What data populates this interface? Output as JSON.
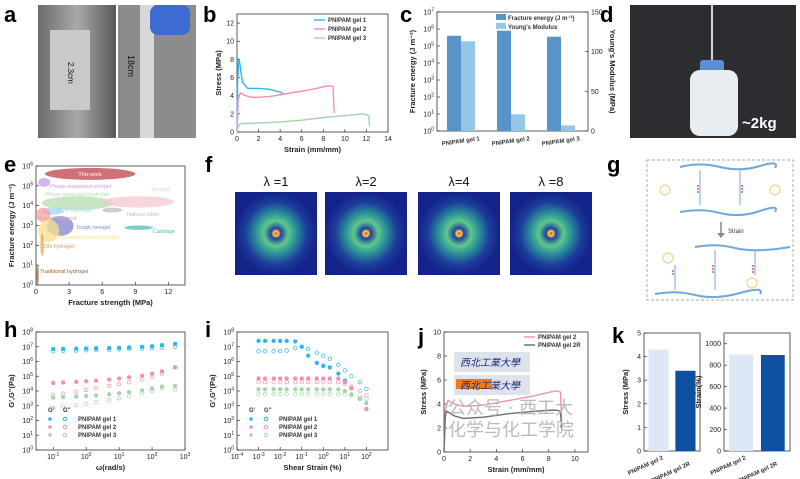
{
  "panel_labels": [
    "a",
    "b",
    "c",
    "d",
    "e",
    "f",
    "g",
    "h",
    "i",
    "j",
    "k"
  ],
  "photo_a": {
    "labels": [
      "2.3cm",
      "18cm"
    ]
  },
  "photo_d": {
    "label": "~2kg"
  },
  "panel_f": {
    "labels": [
      "λ =1",
      "λ=2",
      "λ=4",
      "λ =8"
    ]
  },
  "panel_g": {
    "arrow_label": "Strain"
  },
  "watermark": "公众号 · 西工大化学与化工学院",
  "colors": {
    "gel1": "#29b6f6",
    "gel2": "#f48fb1",
    "gel3": "#a5d6a7",
    "gel2R": "#6d6d6d",
    "fracture_energy": "#5a93c8",
    "youngs_modulus": "#94c6e7",
    "k_light": "#dce8f5",
    "k_dark": "#0d4fa0"
  },
  "chart_data": [
    {
      "id": "b",
      "type": "line",
      "xlabel": "Strain (mm/mm)",
      "ylabel": "Stress (MPa)",
      "xlim": [
        0,
        14
      ],
      "ylim": [
        0,
        13
      ],
      "xticks": [
        0,
        2,
        4,
        6,
        8,
        10,
        12,
        14
      ],
      "yticks": [
        0,
        2,
        4,
        6,
        8,
        10,
        12
      ],
      "legend": "top-right",
      "series": [
        {
          "name": "PNIPAM gel 1",
          "x": [
            0,
            0.05,
            0.15,
            0.25,
            0.5,
            1,
            2,
            3,
            4,
            4.3
          ],
          "y": [
            0,
            5,
            8.1,
            7.6,
            5.5,
            4.8,
            4.8,
            4.7,
            4.4,
            4.2
          ]
        },
        {
          "name": "PNIPAM gel 2",
          "x": [
            0,
            0.1,
            0.3,
            0.8,
            1.5,
            3,
            5,
            7,
            8.5,
            8.9,
            9.0
          ],
          "y": [
            0,
            3.5,
            4.3,
            4.0,
            3.8,
            3.9,
            4.3,
            4.7,
            5.1,
            5.0,
            2.1
          ]
        },
        {
          "name": "PNIPAM gel 3",
          "x": [
            0,
            0.1,
            0.3,
            2,
            4,
            6,
            8,
            10,
            11.7,
            12.2,
            12.3
          ],
          "y": [
            0,
            0.6,
            0.9,
            1.0,
            1.1,
            1.3,
            1.6,
            1.8,
            2.0,
            1.8,
            0.6
          ]
        }
      ]
    },
    {
      "id": "c",
      "type": "bar",
      "categories": [
        "PNIPAM gel 1",
        "PNIPAM gel 2",
        "PNIPAM gel 3"
      ],
      "ylabel": "Fracture energy (J m⁻²)",
      "ylabel_right": "Young's Modulus (MPa)",
      "yscale": "log",
      "ylim": [
        1,
        10000000
      ],
      "yticks": [
        1,
        10,
        100,
        1000,
        10000,
        100000,
        1000000,
        10000000
      ],
      "ylim_right": [
        0,
        150
      ],
      "yticks_right": [
        0,
        50,
        100,
        150
      ],
      "legend": "top-right",
      "series": [
        {
          "name": "Fracture energy (J m⁻²)",
          "axis": "left",
          "values": [
            400000,
            800000,
            350000
          ]
        },
        {
          "name": "Young's Modulus",
          "axis": "right",
          "values": [
            113,
            21,
            7
          ]
        }
      ]
    },
    {
      "id": "e",
      "type": "bubble",
      "xlabel": "Fracture strength (MPa)",
      "ylabel": "Fracture energy (J m⁻²)",
      "xlim": [
        0,
        13.5
      ],
      "ylim": [
        1,
        1000000
      ],
      "yscale": "log",
      "xticks": [
        0,
        3,
        6,
        9,
        12
      ],
      "yticks": [
        1,
        10,
        100,
        1000,
        10000,
        100000,
        1000000
      ],
      "regions": [
        {
          "name": "This work",
          "x": [
            0.8,
            9
          ],
          "y": [
            200000,
            800000
          ],
          "color": "#c0404a"
        },
        {
          "name": "Phase-separated ionogel",
          "x": [
            0.2,
            1.3
          ],
          "y": [
            90000,
            250000
          ],
          "color": "#c59be8"
        },
        {
          "name": "Phase-separated hydrogel",
          "x": [
            0.5,
            7
          ],
          "y": [
            6000,
            30000
          ],
          "color": "#b5dcae"
        },
        {
          "name": "Ionogel",
          "x": [
            6,
            12.5
          ],
          "y": [
            8000,
            30000
          ],
          "color": "#f4c7d2"
        },
        {
          "name": "PCM hydrogel",
          "x": [
            0.5,
            2.5
          ],
          "y": [
            3500,
            8000
          ],
          "color": "#9fd9f2"
        },
        {
          "name": "Natural ruber",
          "x": [
            6,
            7.8
          ],
          "y": [
            4500,
            8000
          ],
          "color": "#bdbdbd"
        },
        {
          "name": "Hybrid hydrogel",
          "x": [
            0,
            1.3
          ],
          "y": [
            1500,
            8000
          ],
          "color": "#f4a0a0"
        },
        {
          "name": "Tough ionogel",
          "x": [
            1,
            3.4
          ],
          "y": [
            300,
            3000
          ],
          "color": "#7d86c9"
        },
        {
          "name": "Cartilage",
          "x": [
            8,
            10.6
          ],
          "y": [
            600,
            1000
          ],
          "color": "#4dbfb5"
        },
        {
          "name": "Polyampholytes hydrogel",
          "x": [
            0.2,
            2.1
          ],
          "y": [
            150,
            2000
          ],
          "color": "#f6e08a"
        },
        {
          "name": "DN hydrogel",
          "x": [
            0.4,
            0.7
          ],
          "y": [
            30,
            400
          ],
          "color": "#f2994a"
        },
        {
          "name": "Traditional hydrogel",
          "x": [
            0.05,
            0.25
          ],
          "y": [
            1,
            10
          ],
          "color": "#a0612a"
        }
      ]
    },
    {
      "id": "h",
      "type": "scatter",
      "xlabel": "ω(rad/s)",
      "ylabel": "G',G''(Pa)",
      "xscale": "log",
      "yscale": "log",
      "xlim": [
        0.03,
        1000
      ],
      "ylim": [
        1,
        100000000
      ],
      "xticks": [
        0.1,
        1,
        10,
        100,
        1000
      ],
      "yticks": [
        1,
        10,
        100,
        1000,
        10000,
        100000,
        1000000,
        10000000,
        100000000
      ],
      "legend_headers": [
        "G'",
        "G''"
      ],
      "legend": "bottom-left",
      "x": [
        0.1,
        0.2,
        0.5,
        1,
        2,
        5,
        10,
        20,
        50,
        100,
        200,
        500
      ],
      "series": [
        {
          "name": "PNIPAM gel 1",
          "modulus": "G'",
          "values": [
            7000000.0,
            7200000.0,
            7500000.0,
            7800000.0,
            8000000.0,
            8200000.0,
            8500000.0,
            9000000.0,
            10000000.0,
            11000000.0,
            13000000.0,
            16000000.0
          ]
        },
        {
          "name": "PNIPAM gel 1",
          "modulus": "G''",
          "values": [
            5000000.0,
            5300000.0,
            5500000.0,
            5800000.0,
            6000000.0,
            6300000.0,
            6600000.0,
            7000000.0,
            7500000.0,
            8000000.0,
            9000000.0,
            10000000.0
          ]
        },
        {
          "name": "PNIPAM gel 2",
          "modulus": "G'",
          "values": [
            35000.0,
            38000.0,
            42000.0,
            46000.0,
            50000.0,
            60000.0,
            70000.0,
            85000.0,
            110000.0,
            150000.0,
            220000.0,
            400000.0
          ]
        },
        {
          "name": "PNIPAM gel 2",
          "modulus": "G''",
          "values": [
            5000.0,
            6500.0,
            9000.0,
            12000.0,
            16000.0,
            22000.0,
            30000.0,
            40000.0,
            60000.0,
            90000.0,
            150000.0,
            400000.0
          ]
        },
        {
          "name": "PNIPAM gel 3",
          "modulus": "G'",
          "values": [
            3500.0,
            3800.0,
            4200.0,
            4600.0,
            5000.0,
            6000.0,
            7000.0,
            8500.0,
            11000.0,
            15000.0,
            20000.0,
            22000.0
          ]
        },
        {
          "name": "PNIPAM gel 3",
          "modulus": "G''",
          "values": [
            700.0,
            900.0,
            1100.0,
            1400.0,
            1800.0,
            2400.0,
            3200.0,
            4500.0,
            7000.0,
            10000.0,
            15000.0,
            13000.0
          ]
        }
      ]
    },
    {
      "id": "i",
      "type": "scatter",
      "xlabel": "Shear Strain (%)",
      "ylabel": "G',G''(Pa)",
      "xscale": "log",
      "yscale": "log",
      "xlim": [
        0.0001,
        1000
      ],
      "ylim": [
        1,
        100000000
      ],
      "xticks": [
        0.0001,
        0.001,
        0.01,
        0.1,
        1,
        10,
        100
      ],
      "yticks": [
        1,
        10,
        100,
        1000,
        10000,
        100000,
        1000000,
        10000000,
        100000000
      ],
      "legend_headers": [
        "G'",
        "G''"
      ],
      "legend": "bottom-left",
      "x": [
        0.001,
        0.002,
        0.005,
        0.01,
        0.02,
        0.05,
        0.1,
        0.2,
        0.5,
        1,
        2,
        5,
        10,
        20,
        50,
        100
      ],
      "series": [
        {
          "name": "PNIPAM gel 1",
          "modulus": "G'",
          "values": [
            25000000.0,
            25000000.0,
            25000000.0,
            25000000.0,
            25000000.0,
            23000000.0,
            10000000.0,
            2500000.0,
            800000.0,
            500000.0,
            400000.0,
            150000.0,
            50000.0,
            15000.0,
            3000.0,
            600.0
          ]
        },
        {
          "name": "PNIPAM gel 1",
          "modulus": "G''",
          "values": [
            5000000.0,
            5000000.0,
            5000000.0,
            5000000.0,
            5500000.0,
            8000000.0,
            10000000.0,
            7000000.0,
            4000000.0,
            2500000.0,
            1500000.0,
            600000.0,
            250000.0,
            100000.0,
            40000.0,
            14000.0
          ]
        },
        {
          "name": "PNIPAM gel 2",
          "modulus": "G'",
          "values": [
            70000.0,
            70000.0,
            70000.0,
            70000.0,
            70000.0,
            70000.0,
            70000.0,
            70000.0,
            70000.0,
            70000.0,
            70000.0,
            70000.0,
            40000.0,
            15000.0,
            3000.0,
            600.0
          ]
        },
        {
          "name": "PNIPAM gel 2",
          "modulus": "G''",
          "values": [
            40000.0,
            40000.0,
            40000.0,
            40000.0,
            40000.0,
            40000.0,
            40000.0,
            40000.0,
            40000.0,
            40000.0,
            40000.0,
            40000.0,
            30000.0,
            20000.0,
            10000.0,
            5000.0
          ]
        },
        {
          "name": "PNIPAM gel 3",
          "modulus": "G'",
          "values": [
            13000.0,
            13000.0,
            13000.0,
            13000.0,
            13000.0,
            13000.0,
            13000.0,
            13000.0,
            13000.0,
            13000.0,
            13000.0,
            13000.0,
            10000.0,
            6000.0,
            3000.0,
            1500.0
          ]
        },
        {
          "name": "PNIPAM gel 3",
          "modulus": "G''",
          "values": [
            6000.0,
            6000.0,
            6000.0,
            6000.0,
            6000.0,
            6000.0,
            6000.0,
            6000.0,
            6000.0,
            6000.0,
            6000.0,
            6000.0,
            6000.0,
            5000.0,
            4000.0,
            3000.0
          ]
        }
      ]
    },
    {
      "id": "j",
      "type": "line",
      "xlabel": "Strain (mm/mm)",
      "ylabel": "Stress (MPa)",
      "xlim": [
        0,
        11
      ],
      "ylim": [
        0,
        10
      ],
      "xticks": [
        0,
        2,
        4,
        6,
        8,
        10
      ],
      "yticks": [
        0,
        2,
        4,
        6,
        8,
        10
      ],
      "legend": "top-right",
      "series": [
        {
          "name": "PNIPAM gel 2",
          "x": [
            0,
            0.1,
            0.3,
            0.8,
            1.5,
            3,
            5,
            7,
            8.5,
            8.9,
            9.0
          ],
          "y": [
            0,
            3.5,
            4.3,
            4.0,
            3.8,
            3.9,
            4.3,
            4.7,
            5.1,
            5.0,
            2.1
          ]
        },
        {
          "name": "PNIPAM gel 2R",
          "x": [
            0,
            0.1,
            0.2,
            0.8,
            1.5,
            3,
            5,
            7,
            8.5,
            8.9,
            9.0
          ],
          "y": [
            0,
            3.0,
            3.4,
            3.0,
            2.8,
            2.9,
            3.2,
            3.4,
            3.5,
            3.4,
            1.8
          ]
        }
      ]
    },
    {
      "id": "k1",
      "type": "bar",
      "ylabel": "Stress (MPa)",
      "categories": [
        "PNIPAM gel 2",
        "PNIPAM gel 2R"
      ],
      "values": [
        4.3,
        3.4
      ],
      "ylim": [
        0,
        5
      ],
      "yticks": [
        0,
        1,
        2,
        3,
        4,
        5
      ]
    },
    {
      "id": "k2",
      "type": "bar",
      "ylabel": "Strain(%)",
      "categories": [
        "PNIPAM gel 2",
        "PNIPAM gel 2R"
      ],
      "values": [
        900,
        895
      ],
      "ylim": [
        0,
        1100
      ],
      "yticks": [
        0,
        200,
        400,
        600,
        800,
        1000
      ]
    }
  ]
}
